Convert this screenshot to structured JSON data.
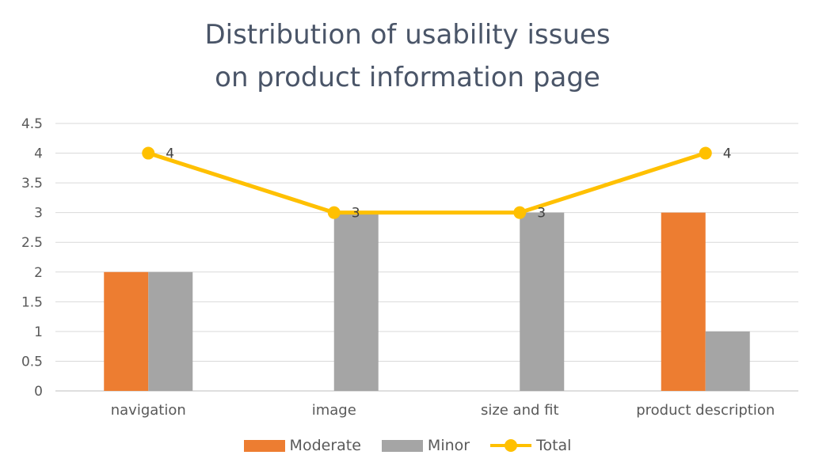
{
  "chart_data": {
    "type": "bar",
    "title": [
      "Distribution of usability issues",
      "on product information page"
    ],
    "categories": [
      "navigation",
      "image",
      "size and fit",
      "product description"
    ],
    "series": [
      {
        "name": "Moderate",
        "kind": "bar",
        "color": "#ED7D31",
        "values": [
          2,
          0,
          0,
          3
        ]
      },
      {
        "name": "Minor",
        "kind": "bar",
        "color": "#A5A5A5",
        "values": [
          2,
          3,
          3,
          1
        ]
      },
      {
        "name": "Total",
        "kind": "line",
        "color": "#FFC000",
        "values": [
          4,
          3,
          3,
          4
        ]
      }
    ],
    "data_labels": [
      "4",
      "3",
      "3",
      "4"
    ],
    "ylim": [
      0,
      4.5
    ],
    "yticks": [
      "0",
      "0.5",
      "1",
      "1.5",
      "2",
      "2.5",
      "3",
      "3.5",
      "4",
      "4.5"
    ],
    "grid": true,
    "legend_position": "bottom"
  }
}
